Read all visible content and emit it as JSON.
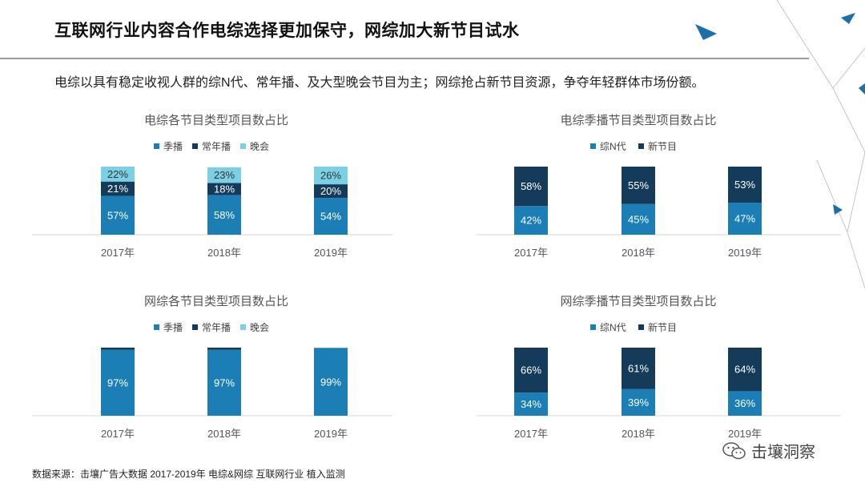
{
  "header": {
    "title": "互联网行业内容合作电综选择更加保守，网综加大新节目试水",
    "subtitle": "电综以具有稳定收视人群的综N代、常年播、及大型晚会节目为主；网综抢占新节目资源，争夺年轻群体市场份额。"
  },
  "colors": {
    "season": "#1b7fb5",
    "regular": "#143c5a",
    "gala": "#7cd0e6",
    "zongn": "#1b7fb5",
    "newshow": "#143c5a"
  },
  "chart_data": [
    {
      "type": "bar",
      "stacked": true,
      "title": "电综各节目类型项目数占比",
      "categories": [
        "2017年",
        "2018年",
        "2019年"
      ],
      "series": [
        {
          "name": "季播",
          "values": [
            57,
            58,
            54
          ],
          "labels": [
            "57%",
            "58%",
            "54%"
          ]
        },
        {
          "name": "常年播",
          "values": [
            21,
            18,
            20
          ],
          "labels": [
            "21%",
            "18%",
            "20%"
          ]
        },
        {
          "name": "晚会",
          "values": [
            22,
            23,
            26
          ],
          "labels": [
            "22%",
            "23%",
            "26%"
          ]
        }
      ],
      "ylim": [
        0,
        100
      ],
      "legend": "top"
    },
    {
      "type": "bar",
      "stacked": true,
      "title": "电综季播节目类型项目数占比",
      "categories": [
        "2017年",
        "2018年",
        "2019年"
      ],
      "series": [
        {
          "name": "综N代",
          "values": [
            42,
            45,
            47
          ],
          "labels": [
            "42%",
            "45%",
            "47%"
          ]
        },
        {
          "name": "新节目",
          "values": [
            58,
            55,
            53
          ],
          "labels": [
            "58%",
            "55%",
            "53%"
          ]
        }
      ],
      "ylim": [
        0,
        100
      ],
      "legend": "top"
    },
    {
      "type": "bar",
      "stacked": true,
      "title": "网综各节目类型项目数占比",
      "categories": [
        "2017年",
        "2018年",
        "2019年"
      ],
      "series": [
        {
          "name": "季播",
          "values": [
            97,
            97,
            99
          ],
          "labels": [
            "97%",
            "97%",
            "99%"
          ]
        },
        {
          "name": "常年播",
          "values": [
            3,
            3,
            0.5
          ],
          "labels": [
            "",
            "",
            ""
          ]
        },
        {
          "name": "晚会",
          "values": [
            0,
            0,
            0.5
          ],
          "labels": [
            "",
            "",
            ""
          ]
        }
      ],
      "ylim": [
        0,
        100
      ],
      "legend": "top"
    },
    {
      "type": "bar",
      "stacked": true,
      "title": "网综季播节目类型项目数占比",
      "categories": [
        "2017年",
        "2018年",
        "2019年"
      ],
      "series": [
        {
          "name": "综N代",
          "values": [
            34,
            39,
            36
          ],
          "labels": [
            "34%",
            "39%",
            "36%"
          ]
        },
        {
          "name": "新节目",
          "values": [
            66,
            61,
            64
          ],
          "labels": [
            "66%",
            "61%",
            "64%"
          ]
        }
      ],
      "ylim": [
        0,
        100
      ],
      "legend": "top"
    }
  ],
  "footer": {
    "source": "数据来源：击壤广告大数据 2017-2019年 电综&网综 互联网行业 植入监测",
    "brand": "击壤洞察",
    "brand_icon": "wechat-icon"
  }
}
